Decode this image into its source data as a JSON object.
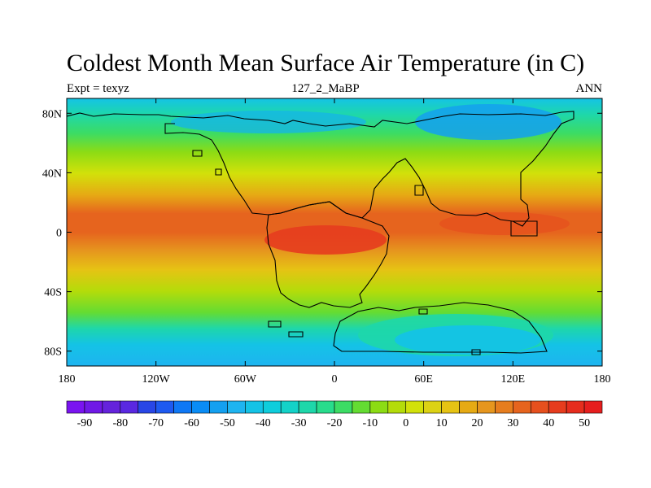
{
  "title": "Coldest Month Mean Surface Air Temperature (in C)",
  "left_label": "Expt = texyz",
  "center_label": "127_2_MaBP",
  "right_label": "ANN",
  "map": {
    "projection": "cylindrical-equidistant",
    "lon_range": [
      -180,
      180
    ],
    "lat_range": [
      -90,
      90
    ],
    "lon_ticks": [
      {
        "value": -180,
        "label": "180"
      },
      {
        "value": -120,
        "label": "120W"
      },
      {
        "value": -60,
        "label": "60W"
      },
      {
        "value": 0,
        "label": "0"
      },
      {
        "value": 60,
        "label": "60E"
      },
      {
        "value": 120,
        "label": "120E"
      },
      {
        "value": 180,
        "label": "180"
      }
    ],
    "lat_ticks": [
      {
        "value": 80,
        "label": "80N"
      },
      {
        "value": 40,
        "label": "40N"
      },
      {
        "value": 0,
        "label": "0"
      },
      {
        "value": -40,
        "label": "40S"
      },
      {
        "value": -80,
        "label": "80S"
      }
    ],
    "coastline_color": "#000000"
  },
  "colorbar": {
    "levels": [
      -95,
      -90,
      -85,
      -80,
      -75,
      -70,
      -65,
      -60,
      -55,
      -50,
      -45,
      -40,
      -35,
      -30,
      -25,
      -20,
      -15,
      -10,
      -5,
      0,
      5,
      10,
      15,
      20,
      25,
      30,
      35,
      40,
      45,
      50,
      55
    ],
    "labels": [
      "-90",
      "-80",
      "-70",
      "-60",
      "-50",
      "-40",
      "-30",
      "-20",
      "-10",
      "0",
      "10",
      "20",
      "30",
      "40",
      "50"
    ],
    "colors": [
      "#7a14f0",
      "#7019e6",
      "#6523dc",
      "#5a28e1",
      "#2846e6",
      "#1e5af0",
      "#0f78f5",
      "#0a8cf5",
      "#14a0f0",
      "#1eb4f0",
      "#14c3e6",
      "#0fcddc",
      "#14d2c8",
      "#1ed7aa",
      "#28dc8c",
      "#3cdc64",
      "#64dc32",
      "#8cdc14",
      "#b4dc0a",
      "#d2e10a",
      "#dcd214",
      "#e6c314",
      "#e6aa14",
      "#e6961e",
      "#e67d1e",
      "#e6641e",
      "#e6501e",
      "#e63c1e",
      "#e62d1e",
      "#e61e1e"
    ]
  }
}
